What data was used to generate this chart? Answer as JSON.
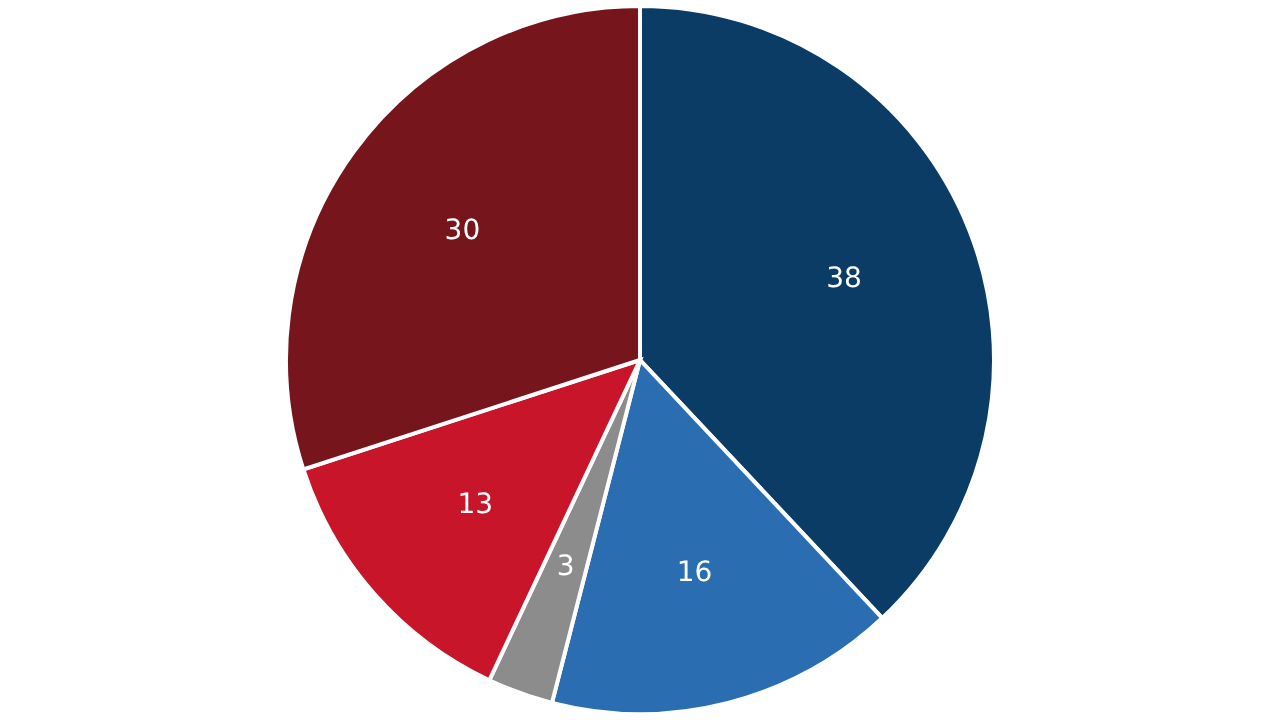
{
  "chart_data": {
    "type": "pie",
    "categories": [
      null,
      null,
      null,
      null,
      null
    ],
    "values": [
      38,
      16,
      3,
      13,
      30
    ],
    "colors": [
      "#0b3c66",
      "#2a6db0",
      "#8c8c8c",
      "#c8152a",
      "#76151c"
    ],
    "data_labels": true,
    "legend": false
  }
}
